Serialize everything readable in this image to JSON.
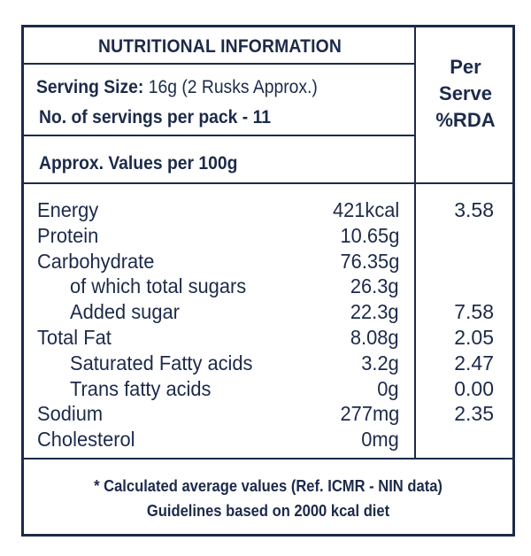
{
  "header": {
    "title": "NUTRITIONAL INFORMATION",
    "serving_size_label": "Serving Size:",
    "serving_size_value": "16g (2 Rusks Approx.)",
    "servings_per_pack": "No. of servings per pack -  11",
    "approx_values": "Approx. Values per 100g"
  },
  "per_serve": {
    "line1": "Per",
    "line2": "Serve",
    "line3": "%RDA"
  },
  "nutrients": [
    {
      "name": "Energy",
      "value": "421kcal",
      "rda": "3.58",
      "indent": false
    },
    {
      "name": "Protein",
      "value": "10.65g",
      "rda": "",
      "indent": false
    },
    {
      "name": "Carbohydrate",
      "value": "76.35g",
      "rda": "",
      "indent": false
    },
    {
      "name": "of which total sugars",
      "value": "26.3g",
      "rda": "",
      "indent": true
    },
    {
      "name": "Added sugar",
      "value": "22.3g",
      "rda": "7.58",
      "indent": true
    },
    {
      "name": "Total Fat",
      "value": "8.08g",
      "rda": "2.05",
      "indent": false
    },
    {
      "name": "Saturated Fatty acids",
      "value": "3.2g",
      "rda": "2.47",
      "indent": true
    },
    {
      "name": "Trans fatty acids",
      "value": "0g",
      "rda": "0.00",
      "indent": true
    },
    {
      "name": "Sodium",
      "value": "277mg",
      "rda": "2.35",
      "indent": false
    },
    {
      "name": "Cholesterol",
      "value": "0mg",
      "rda": "",
      "indent": false
    }
  ],
  "footer": {
    "note1": "* Calculated average values (Ref. ICMR - NIN data)",
    "note2": "Guidelines based on 2000 kcal diet"
  }
}
